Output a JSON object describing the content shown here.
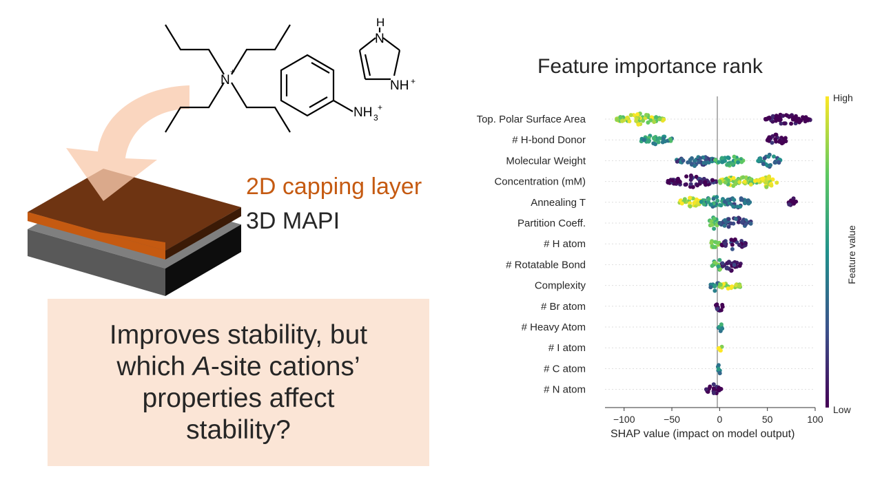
{
  "molecules": {
    "cation1": {
      "charge": "+",
      "atom": "N"
    },
    "cation2": {
      "group": "NH",
      "sub": "3",
      "charge": "+"
    },
    "cation3": {
      "top": "H",
      "topatom": "N",
      "bottom": "NH",
      "charge": "+"
    }
  },
  "stack": {
    "top_label": "2D capping layer",
    "bottom_label": "3D MAPI",
    "top_color": "#c55a11",
    "top_face_color": "#6e3412",
    "bottom_color": "#595959",
    "arrow_color": "#f8cbad"
  },
  "callout": {
    "lines": [
      {
        "parts": [
          {
            "text": "Improves stability, but",
            "italic": false
          }
        ]
      },
      {
        "parts": [
          {
            "text": "which ",
            "italic": false
          },
          {
            "text": "A",
            "italic": true
          },
          {
            "text": "-site cations’",
            "italic": false
          }
        ]
      },
      {
        "parts": [
          {
            "text": "properties affect",
            "italic": false
          }
        ]
      },
      {
        "parts": [
          {
            "text": "stability?",
            "italic": false
          }
        ]
      }
    ],
    "bg_color": "#fbe5d6"
  },
  "chart_data": {
    "type": "scatter",
    "title": "Feature importance rank",
    "xlabel": "SHAP value (impact on model output)",
    "xlim": [
      -120,
      100
    ],
    "xticks": [
      -100,
      -50,
      0,
      50,
      100
    ],
    "colorbar": {
      "label": "Feature value",
      "high": "High",
      "low": "Low",
      "colors": [
        "#440154",
        "#3b528b",
        "#21918c",
        "#5ec962",
        "#fde725"
      ]
    },
    "features": [
      {
        "name": "Top. Polar Surface Area",
        "clusters": [
          {
            "x0": -108,
            "x1": -58,
            "v": 0.85
          },
          {
            "x0": 48,
            "x1": 95,
            "v": 0.0
          }
        ]
      },
      {
        "name": "# H-bond Donor",
        "clusters": [
          {
            "x0": -82,
            "x1": -50,
            "v": 0.55
          },
          {
            "x0": 48,
            "x1": 70,
            "v": 0.0
          }
        ]
      },
      {
        "name": "Molecular Weight",
        "clusters": [
          {
            "x0": -45,
            "x1": -5,
            "v": 0.3
          },
          {
            "x0": -5,
            "x1": 25,
            "v": 0.6
          },
          {
            "x0": 40,
            "x1": 64,
            "v": 0.4
          }
        ]
      },
      {
        "name": "Concentration (mM)",
        "clusters": [
          {
            "x0": -55,
            "x1": -3,
            "v": 0.05
          },
          {
            "x0": 0,
            "x1": 40,
            "v": 0.85
          },
          {
            "x0": 40,
            "x1": 60,
            "v": 0.95
          }
        ]
      },
      {
        "name": "Annealing T",
        "clusters": [
          {
            "x0": -42,
            "x1": -20,
            "v": 0.95
          },
          {
            "x0": -20,
            "x1": 10,
            "v": 0.5
          },
          {
            "x0": 5,
            "x1": 32,
            "v": 0.3
          },
          {
            "x0": 72,
            "x1": 80,
            "v": 0.0
          }
        ]
      },
      {
        "name": "Partition Coeff.",
        "clusters": [
          {
            "x0": -12,
            "x1": 0,
            "v": 0.7
          },
          {
            "x0": 0,
            "x1": 33,
            "v": 0.25
          }
        ]
      },
      {
        "name": "# H atom",
        "clusters": [
          {
            "x0": -10,
            "x1": 0,
            "v": 0.75
          },
          {
            "x0": 2,
            "x1": 28,
            "v": 0.1
          }
        ]
      },
      {
        "name": "# Rotatable Bond",
        "clusters": [
          {
            "x0": -8,
            "x1": 5,
            "v": 0.7
          },
          {
            "x0": 2,
            "x1": 22,
            "v": 0.05
          }
        ]
      },
      {
        "name": "Complexity",
        "clusters": [
          {
            "x0": -10,
            "x1": 0,
            "v": 0.4
          },
          {
            "x0": 0,
            "x1": 22,
            "v": 0.9
          }
        ]
      },
      {
        "name": "# Br atom",
        "clusters": [
          {
            "x0": -4,
            "x1": 4,
            "v": 0.05
          }
        ]
      },
      {
        "name": "# Heavy Atom",
        "clusters": [
          {
            "x0": -3,
            "x1": 3,
            "v": 0.5
          }
        ]
      },
      {
        "name": "# I atom",
        "clusters": [
          {
            "x0": -2,
            "x1": 3,
            "v": 0.95
          }
        ]
      },
      {
        "name": "# C atom",
        "clusters": [
          {
            "x0": -2,
            "x1": 2,
            "v": 0.4
          }
        ]
      },
      {
        "name": "# N atom",
        "clusters": [
          {
            "x0": -15,
            "x1": 2,
            "v": 0.0
          }
        ]
      }
    ]
  }
}
